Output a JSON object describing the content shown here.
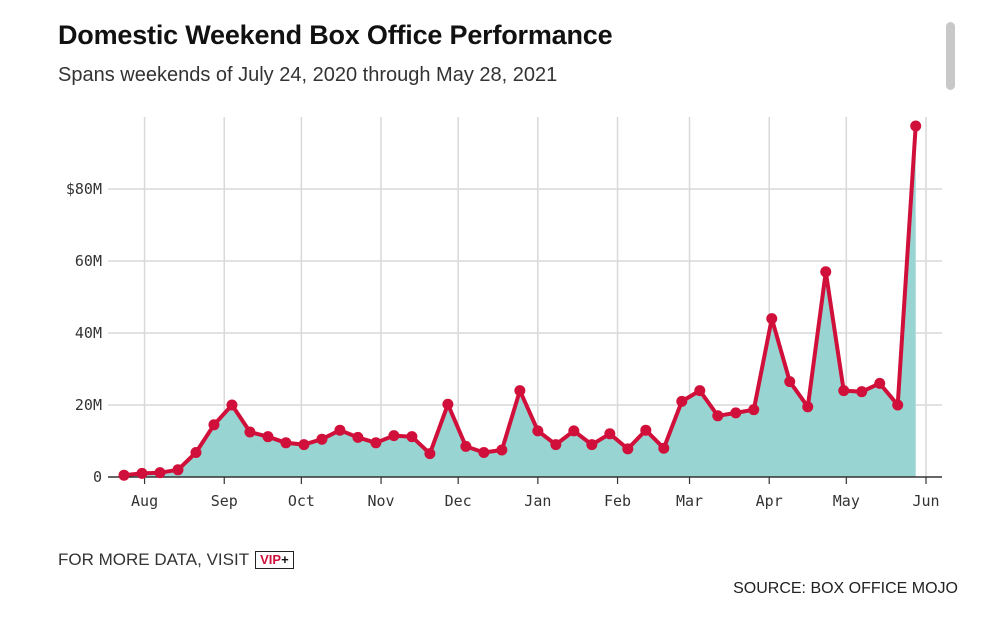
{
  "title": "Domestic Weekend Box Office Performance",
  "subtitle": "Spans weekends of July 24, 2020 through May 28, 2021",
  "footer": {
    "more_data": "FOR MORE DATA, VISIT",
    "vip_text": "VIP",
    "vip_plus": "+"
  },
  "source": "SOURCE: BOX OFFICE MOJO",
  "colors": {
    "line": "#d0103a",
    "fill": "#98d5d2",
    "grid": "#d9d9d9"
  },
  "chart_data": {
    "type": "area",
    "y_tick_labels": [
      "0",
      "20M",
      "40M",
      "60M",
      "$80M"
    ],
    "y_tick_values": [
      0,
      20,
      40,
      60,
      80
    ],
    "ylim": [
      0,
      100
    ],
    "x_tick_labels": [
      "Aug",
      "Sep",
      "Oct",
      "Nov",
      "Dec",
      "Jan",
      "Feb",
      "Mar",
      "Apr",
      "May",
      "Jun"
    ],
    "x_tick_dates": [
      "2020-08-01",
      "2020-09-01",
      "2020-10-01",
      "2020-11-01",
      "2020-12-01",
      "2021-01-01",
      "2021-02-01",
      "2021-03-01",
      "2021-04-01",
      "2021-05-01",
      "2021-06-01"
    ],
    "x_range": [
      "2020-07-24",
      "2021-06-01"
    ],
    "grid": true,
    "dates": [
      "2020-07-24",
      "2020-07-31",
      "2020-08-07",
      "2020-08-14",
      "2020-08-21",
      "2020-08-28",
      "2020-09-04",
      "2020-09-11",
      "2020-09-18",
      "2020-09-25",
      "2020-10-02",
      "2020-10-09",
      "2020-10-16",
      "2020-10-23",
      "2020-10-30",
      "2020-11-06",
      "2020-11-13",
      "2020-11-20",
      "2020-11-27",
      "2020-12-04",
      "2020-12-11",
      "2020-12-18",
      "2020-12-25",
      "2021-01-01",
      "2021-01-08",
      "2021-01-15",
      "2021-01-22",
      "2021-01-29",
      "2021-02-05",
      "2021-02-12",
      "2021-02-19",
      "2021-02-26",
      "2021-03-05",
      "2021-03-12",
      "2021-03-19",
      "2021-03-26",
      "2021-04-02",
      "2021-04-09",
      "2021-04-16",
      "2021-04-23",
      "2021-04-30",
      "2021-05-07",
      "2021-05-14",
      "2021-05-21",
      "2021-05-28"
    ],
    "values": [
      0.5,
      1.0,
      1.2,
      2.0,
      6.8,
      14.5,
      20.0,
      12.5,
      11.2,
      9.5,
      9.0,
      10.5,
      13.0,
      11.0,
      9.5,
      11.5,
      11.2,
      6.5,
      20.2,
      8.5,
      6.8,
      7.5,
      24.0,
      12.8,
      9.0,
      12.8,
      9.0,
      12.0,
      7.8,
      13.0,
      8.0,
      21.0,
      24.0,
      17.0,
      17.8,
      18.7,
      44.0,
      26.5,
      19.5,
      57.0,
      24.0,
      23.7,
      26.0,
      20.0,
      97.5
    ]
  }
}
